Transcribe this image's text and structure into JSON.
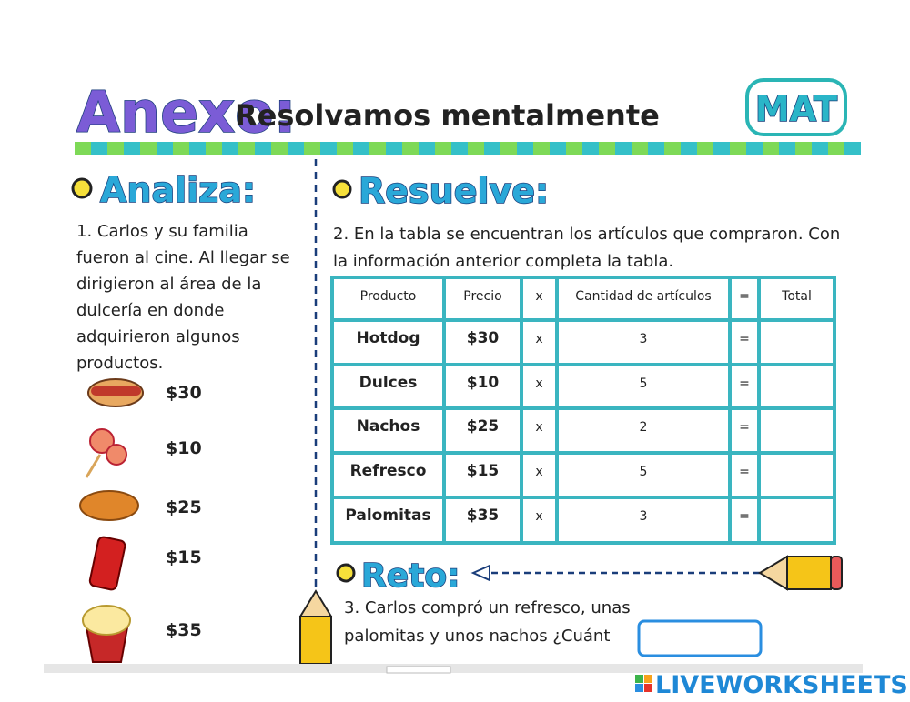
{
  "header": {
    "title": "Anexo:",
    "subtitle": "Resolvamos mentalmente",
    "badge": "MAT"
  },
  "analiza": {
    "heading": "Analiza:",
    "lines": [
      "1. Carlos y su familia",
      "fueron al cine. Al llegar se",
      "dirigieron al área de la",
      "dulcería en donde",
      "adquirieron algunos",
      "productos."
    ],
    "prices": [
      "$30",
      "$10",
      "$25",
      "$15",
      "$35"
    ]
  },
  "resuelve": {
    "heading": "Resuelve:",
    "lines": [
      "2. En la tabla se encuentran los artículos que compraron. Con",
      "la información anterior completa la tabla."
    ]
  },
  "table": {
    "headers": [
      "Producto",
      "Precio",
      "x",
      "Cantidad de artículos",
      "=",
      "Total"
    ],
    "rows": [
      [
        "Hotdog",
        "$30",
        "x",
        "3",
        "="
      ],
      [
        "Dulces",
        "$10",
        "x",
        "5",
        "="
      ],
      [
        "Nachos",
        "$25",
        "x",
        "2",
        "="
      ],
      [
        "Refresco",
        "$15",
        "x",
        "5",
        "="
      ],
      [
        "Palomitas",
        "$35",
        "x",
        "3",
        "="
      ]
    ]
  },
  "reto": {
    "heading": "Reto:",
    "lines": [
      "3. Carlos compró un refresco, unas",
      "palomitas y unos nachos ¿Cuánt"
    ]
  },
  "footer": {
    "brand": "LIVEWORKSHEETS"
  }
}
